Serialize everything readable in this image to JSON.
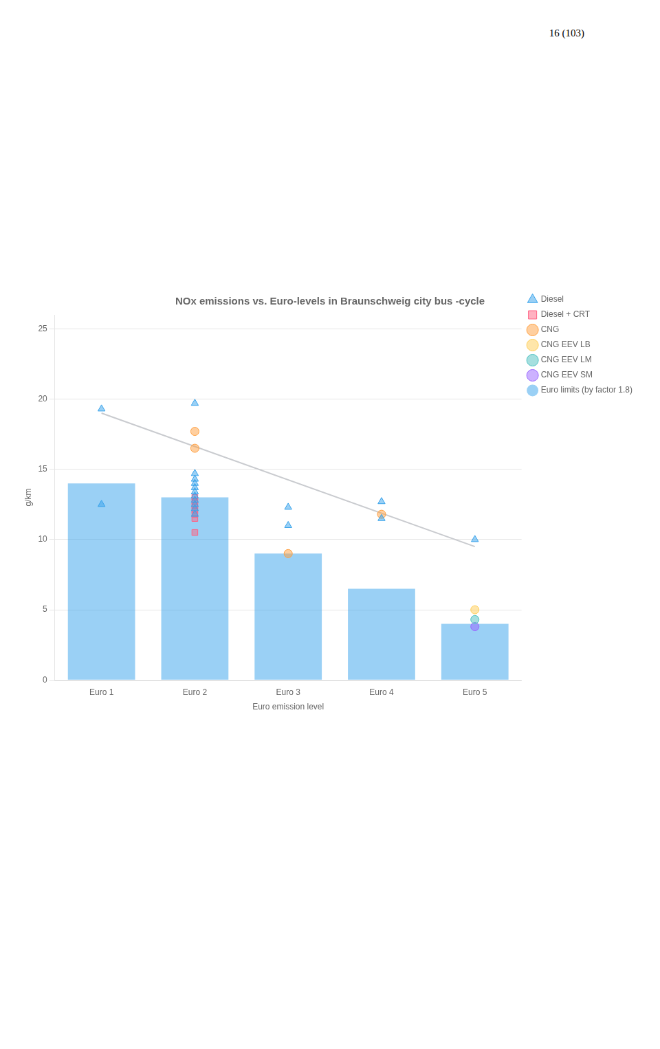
{
  "chart_data": {
    "type": "bar",
    "title": "NOx emissions vs. Euro-levels in Braunschweig city bus -cycle",
    "xlabel": "Euro emission level",
    "ylabel": "g/km",
    "annotations": [
      "16 (103)"
    ],
    "categories": [
      "Euro 1",
      "Euro 2",
      "Euro 3",
      "Euro 4",
      "Euro 5"
    ],
    "ylim": [
      0,
      26
    ],
    "yticks": [
      0,
      5,
      10,
      15,
      20,
      25
    ],
    "grid": true,
    "legend": "upper right",
    "series": [
      {
        "name": "Diesel",
        "type": "scatter",
        "marker": "triangle",
        "x": [
          "Euro 1",
          "Euro 1",
          "Euro 2",
          "Euro 2",
          "Euro 2",
          "Euro 2",
          "Euro 2",
          "Euro 2",
          "Euro 2",
          "Euro 2",
          "Euro 2",
          "Euro 2",
          "Euro 2",
          "Euro 3",
          "Euro 3",
          "Euro 4",
          "Euro 4",
          "Euro 5"
        ],
        "values": [
          19.3,
          12.5,
          19.7,
          14.7,
          14.3,
          14.0,
          13.7,
          13.4,
          13.1,
          12.8,
          12.5,
          12.2,
          11.8,
          12.3,
          11.0,
          12.7,
          11.5,
          10.0
        ]
      },
      {
        "name": "Diesel + CRT",
        "type": "scatter",
        "marker": "square",
        "x": [
          "Euro 2",
          "Euro 2",
          "Euro 2",
          "Euro 2",
          "Euro 2",
          "Euro 2",
          "Euro 2"
        ],
        "values": [
          13.0,
          12.7,
          12.4,
          12.1,
          11.8,
          11.5,
          10.5
        ]
      },
      {
        "name": "CNG",
        "type": "scatter",
        "marker": "circle",
        "x": [
          "Euro 2",
          "Euro 2",
          "Euro 3",
          "Euro 4"
        ],
        "values": [
          17.7,
          16.5,
          9.0,
          11.8
        ]
      },
      {
        "name": "CNG EEV LB",
        "type": "scatter",
        "marker": "circle",
        "x": [
          "Euro 5"
        ],
        "values": [
          5.0
        ]
      },
      {
        "name": "CNG EEV LM",
        "type": "scatter",
        "marker": "circle",
        "x": [
          "Euro 5"
        ],
        "values": [
          4.3
        ]
      },
      {
        "name": "CNG EEV SM",
        "type": "scatter",
        "marker": "circle",
        "x": [
          "Euro 5"
        ],
        "values": [
          3.8
        ]
      },
      {
        "type": "line",
        "x": [
          "Euro 1",
          "Euro 5"
        ],
        "values": [
          19.0,
          9.5
        ]
      },
      {
        "name": "Euro limits (by factor 1.8)",
        "type": "bar",
        "values": [
          14.0,
          13.0,
          9.0,
          6.5,
          4.0
        ]
      }
    ]
  }
}
